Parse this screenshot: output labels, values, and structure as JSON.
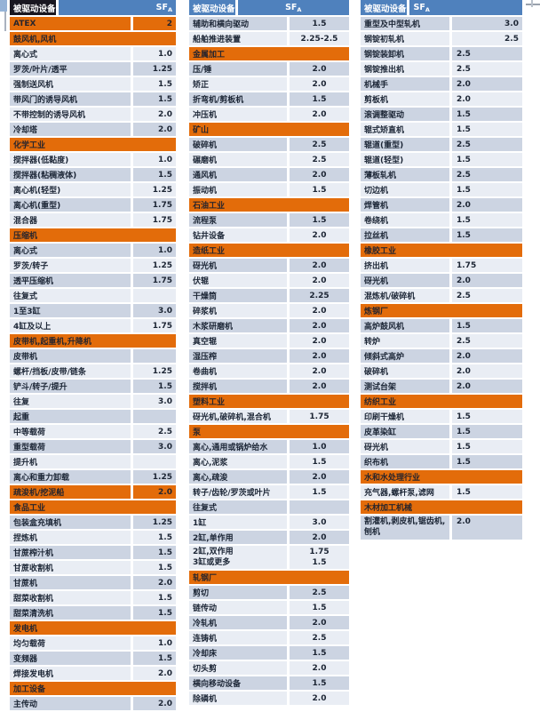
{
  "table": {
    "header": {
      "label": "被驱动设备",
      "sf": "SF",
      "sf_sub": "A"
    },
    "colors": {
      "header_blue": "#4f81bd",
      "header_dark": "#191720",
      "section_orange": "#e36c0a",
      "stripe_dark": "#ccd4e2",
      "stripe_light": "#e9edf4",
      "text": "#1c2636"
    },
    "columns": [
      {
        "value_align": "right",
        "rows": [
          {
            "t": "orange",
            "label": "ATEX",
            "value": "2"
          },
          {
            "t": "section",
            "label": "鼓风机,风机"
          },
          {
            "t": "row",
            "label": "离心式",
            "value": "1.0"
          },
          {
            "t": "row",
            "label": "罗茨/叶片/透平",
            "value": "1.25"
          },
          {
            "t": "row",
            "label": "强制送风机",
            "value": "1.5"
          },
          {
            "t": "row",
            "label": "带风门的诱导风机",
            "value": "1.5"
          },
          {
            "t": "row",
            "label": "不带控制的诱导风机",
            "value": "2.0"
          },
          {
            "t": "row",
            "label": "冷却塔",
            "value": "2.0"
          },
          {
            "t": "section",
            "label": "化学工业"
          },
          {
            "t": "row",
            "label": "搅拌器(低黏度)",
            "value": "1.0"
          },
          {
            "t": "row",
            "label": "搅拌器(粘稠液体)",
            "value": "1.5"
          },
          {
            "t": "row",
            "label": "离心机(轻型)",
            "value": "1.25"
          },
          {
            "t": "row",
            "label": "离心机(重型)",
            "value": "1.75"
          },
          {
            "t": "row",
            "label": "混合器",
            "value": "1.75"
          },
          {
            "t": "section",
            "label": "压缩机"
          },
          {
            "t": "row",
            "label": "离心式",
            "value": "1.0"
          },
          {
            "t": "row",
            "label": "罗茨/转子",
            "value": "1.25"
          },
          {
            "t": "row",
            "label": "透平压缩机",
            "value": "1.75"
          },
          {
            "t": "row",
            "label": "往复式",
            "value": ""
          },
          {
            "t": "row",
            "label": "1至3缸",
            "value": "3.0"
          },
          {
            "t": "row",
            "label": "4缸及以上",
            "value": "1.75"
          },
          {
            "t": "section",
            "label": "皮带机,起重机,升降机"
          },
          {
            "t": "row",
            "label": "皮带机",
            "value": ""
          },
          {
            "t": "row",
            "label": "螺杆/挡板/皮带/链条",
            "value": "1.25"
          },
          {
            "t": "row",
            "label": "铲斗/转子/提升",
            "value": "1.5"
          },
          {
            "t": "row",
            "label": "往复",
            "value": "3.0"
          },
          {
            "t": "row",
            "label": "起重",
            "value": ""
          },
          {
            "t": "row",
            "label": "中等载荷",
            "value": "2.5"
          },
          {
            "t": "row",
            "label": "重型载荷",
            "value": "3.0"
          },
          {
            "t": "row",
            "label": "提升机",
            "value": ""
          },
          {
            "t": "row",
            "label": "离心和重力卸载",
            "value": "1.25"
          },
          {
            "t": "orange",
            "label": "疏浚机/挖泥船",
            "value": "2.0"
          },
          {
            "t": "section",
            "label": "食品工业"
          },
          {
            "t": "row",
            "label": "包装盒充填机",
            "value": "1.25"
          },
          {
            "t": "row",
            "label": "捏炼机",
            "value": "1.5"
          },
          {
            "t": "row",
            "label": "甘蔗榨汁机",
            "value": "1.5"
          },
          {
            "t": "row",
            "label": "甘蔗收割机",
            "value": "1.5"
          },
          {
            "t": "row",
            "label": "甘蔗机",
            "value": "2.0"
          },
          {
            "t": "row",
            "label": "甜菜收割机",
            "value": "1.5"
          },
          {
            "t": "row",
            "label": "甜菜清洗机",
            "value": "1.5"
          },
          {
            "t": "section",
            "label": "发电机"
          },
          {
            "t": "row",
            "label": "均匀载荷",
            "value": "1.0"
          },
          {
            "t": "row",
            "label": "变频器",
            "value": "1.5"
          },
          {
            "t": "row",
            "label": "焊接发电机",
            "value": "2.0"
          },
          {
            "t": "section",
            "label": "加工设备"
          },
          {
            "t": "row",
            "label": "主传动",
            "value": "2.0"
          }
        ]
      },
      {
        "value_align": "center",
        "rows": [
          {
            "t": "row",
            "label": "辅助和横向驱动",
            "value": "1.5"
          },
          {
            "t": "row",
            "label": "船舶推进装置",
            "value": "2.25-2.5"
          },
          {
            "t": "section",
            "label": "金属加工"
          },
          {
            "t": "row",
            "label": "压/锤",
            "value": "2.0"
          },
          {
            "t": "row",
            "label": "矫正",
            "value": "2.0"
          },
          {
            "t": "row",
            "label": "折弯机/剪板机",
            "value": "1.5"
          },
          {
            "t": "row",
            "label": "冲压机",
            "value": "2.0"
          },
          {
            "t": "section",
            "label": "矿山"
          },
          {
            "t": "row",
            "label": "破碎机",
            "value": "2.5"
          },
          {
            "t": "row",
            "label": "碾磨机",
            "value": "2.5"
          },
          {
            "t": "row",
            "label": "通风机",
            "value": "2.0"
          },
          {
            "t": "row",
            "label": "振动机",
            "value": "1.5"
          },
          {
            "t": "section",
            "label": "石油工业"
          },
          {
            "t": "row",
            "label": "流程泵",
            "value": "1.5"
          },
          {
            "t": "row",
            "label": "钻井设备",
            "value": "2.0"
          },
          {
            "t": "section",
            "label": "造纸工业"
          },
          {
            "t": "row",
            "label": "砑光机",
            "value": "2.0"
          },
          {
            "t": "row",
            "label": "伏辊",
            "value": "2.0"
          },
          {
            "t": "row",
            "label": "干燥筒",
            "value": "2.25"
          },
          {
            "t": "row",
            "label": "碎浆机",
            "value": "2.0"
          },
          {
            "t": "row",
            "label": "木浆研磨机",
            "value": "2.0"
          },
          {
            "t": "row",
            "label": "真空辊",
            "value": "2.0"
          },
          {
            "t": "row",
            "label": "湿压榨",
            "value": "2.0"
          },
          {
            "t": "row",
            "label": "卷曲机",
            "value": "2.0"
          },
          {
            "t": "row",
            "label": "搅拌机",
            "value": "2.0"
          },
          {
            "t": "section",
            "label": "塑料工业"
          },
          {
            "t": "row",
            "label": "砑光机,破碎机,混合机",
            "value": "1.75"
          },
          {
            "t": "section",
            "label": "泵"
          },
          {
            "t": "row",
            "label": "离心,通用或锅炉给水",
            "value": "1.0"
          },
          {
            "t": "row",
            "label": "离心,泥浆",
            "value": "1.5"
          },
          {
            "t": "row",
            "label": "离心,疏浚",
            "value": "2.0"
          },
          {
            "t": "row",
            "label": "转子/齿轮/罗茨或叶片",
            "value": "1.5"
          },
          {
            "t": "row",
            "label": "往复式",
            "value": ""
          },
          {
            "t": "row",
            "label": "1缸",
            "value": "3.0"
          },
          {
            "t": "row",
            "label": "2缸,单作用",
            "value": "2.0"
          },
          {
            "t": "row2",
            "labels": [
              "2缸,双作用",
              "3缸或更多"
            ],
            "values": [
              "1.75",
              "1.5"
            ]
          },
          {
            "t": "section",
            "label": "轧钢厂"
          },
          {
            "t": "row",
            "label": "剪切",
            "value": "2.5"
          },
          {
            "t": "row",
            "label": "链传动",
            "value": "1.5"
          },
          {
            "t": "row",
            "label": "冷轧机",
            "value": "2.0"
          },
          {
            "t": "row",
            "label": "连铸机",
            "value": "2.5"
          },
          {
            "t": "row",
            "label": "冷却床",
            "value": "1.5"
          },
          {
            "t": "row",
            "label": "切头剪",
            "value": "2.0"
          },
          {
            "t": "row",
            "label": "横向移动设备",
            "value": "1.5"
          },
          {
            "t": "row",
            "label": "除磷机",
            "value": "2.0"
          }
        ]
      },
      {
        "value_align": "left",
        "rows": [
          {
            "t": "row",
            "label": "重型及中型轧机",
            "value": "3.0",
            "align": "right"
          },
          {
            "t": "row",
            "label": "钢锭初轧机",
            "value": "2.5",
            "align": "right"
          },
          {
            "t": "row",
            "label": "钢锭装卸机",
            "value": "2.5"
          },
          {
            "t": "row",
            "label": "钢锭推出机",
            "value": "2.5"
          },
          {
            "t": "row",
            "label": "机械手",
            "value": "2.0"
          },
          {
            "t": "row",
            "label": "剪板机",
            "value": "2.0"
          },
          {
            "t": "row",
            "label": "滚调整驱动",
            "value": "1.5"
          },
          {
            "t": "row",
            "label": "辊式矫直机",
            "value": "1.5"
          },
          {
            "t": "row",
            "label": "辊道(重型)",
            "value": "2.5"
          },
          {
            "t": "row",
            "label": "辊道(轻型)",
            "value": "1.5"
          },
          {
            "t": "row",
            "label": "薄板轧机",
            "value": "2.5"
          },
          {
            "t": "row",
            "label": "切边机",
            "value": "1.5"
          },
          {
            "t": "row",
            "label": "焊管机",
            "value": "2.0"
          },
          {
            "t": "row",
            "label": "卷绕机",
            "value": "1.5"
          },
          {
            "t": "row",
            "label": "拉丝机",
            "value": "1.5"
          },
          {
            "t": "section",
            "label": "橡胶工业"
          },
          {
            "t": "row",
            "label": "挤出机",
            "value": "1.75"
          },
          {
            "t": "row",
            "label": "砑光机",
            "value": "2.0"
          },
          {
            "t": "row",
            "label": "混炼机/破碎机",
            "value": "2.5"
          },
          {
            "t": "section",
            "label": "炼钢厂"
          },
          {
            "t": "row",
            "label": "高炉鼓风机",
            "value": "1.5"
          },
          {
            "t": "row",
            "label": "转炉",
            "value": "2.5"
          },
          {
            "t": "row",
            "label": "倾斜式高炉",
            "value": "2.0"
          },
          {
            "t": "row",
            "label": "破碎机",
            "value": "2.0"
          },
          {
            "t": "row",
            "label": "测试台架",
            "value": "2.0"
          },
          {
            "t": "section",
            "label": "纺织工业"
          },
          {
            "t": "row",
            "label": "印刷干燥机",
            "value": "1.5"
          },
          {
            "t": "row",
            "label": "皮革染缸",
            "value": "1.5"
          },
          {
            "t": "row",
            "label": "砑光机",
            "value": "1.5"
          },
          {
            "t": "row",
            "label": "织布机",
            "value": "1.5"
          },
          {
            "t": "section",
            "label": "水和水处理行业"
          },
          {
            "t": "row",
            "label": "充气器,螺杆泵,滤网",
            "value": "1.5"
          },
          {
            "t": "section",
            "label": "木材加工机械"
          },
          {
            "t": "row",
            "label": "割灌机,剥皮机,锯齿机,刨机",
            "value": "2.0",
            "wrap": true
          }
        ]
      }
    ]
  }
}
